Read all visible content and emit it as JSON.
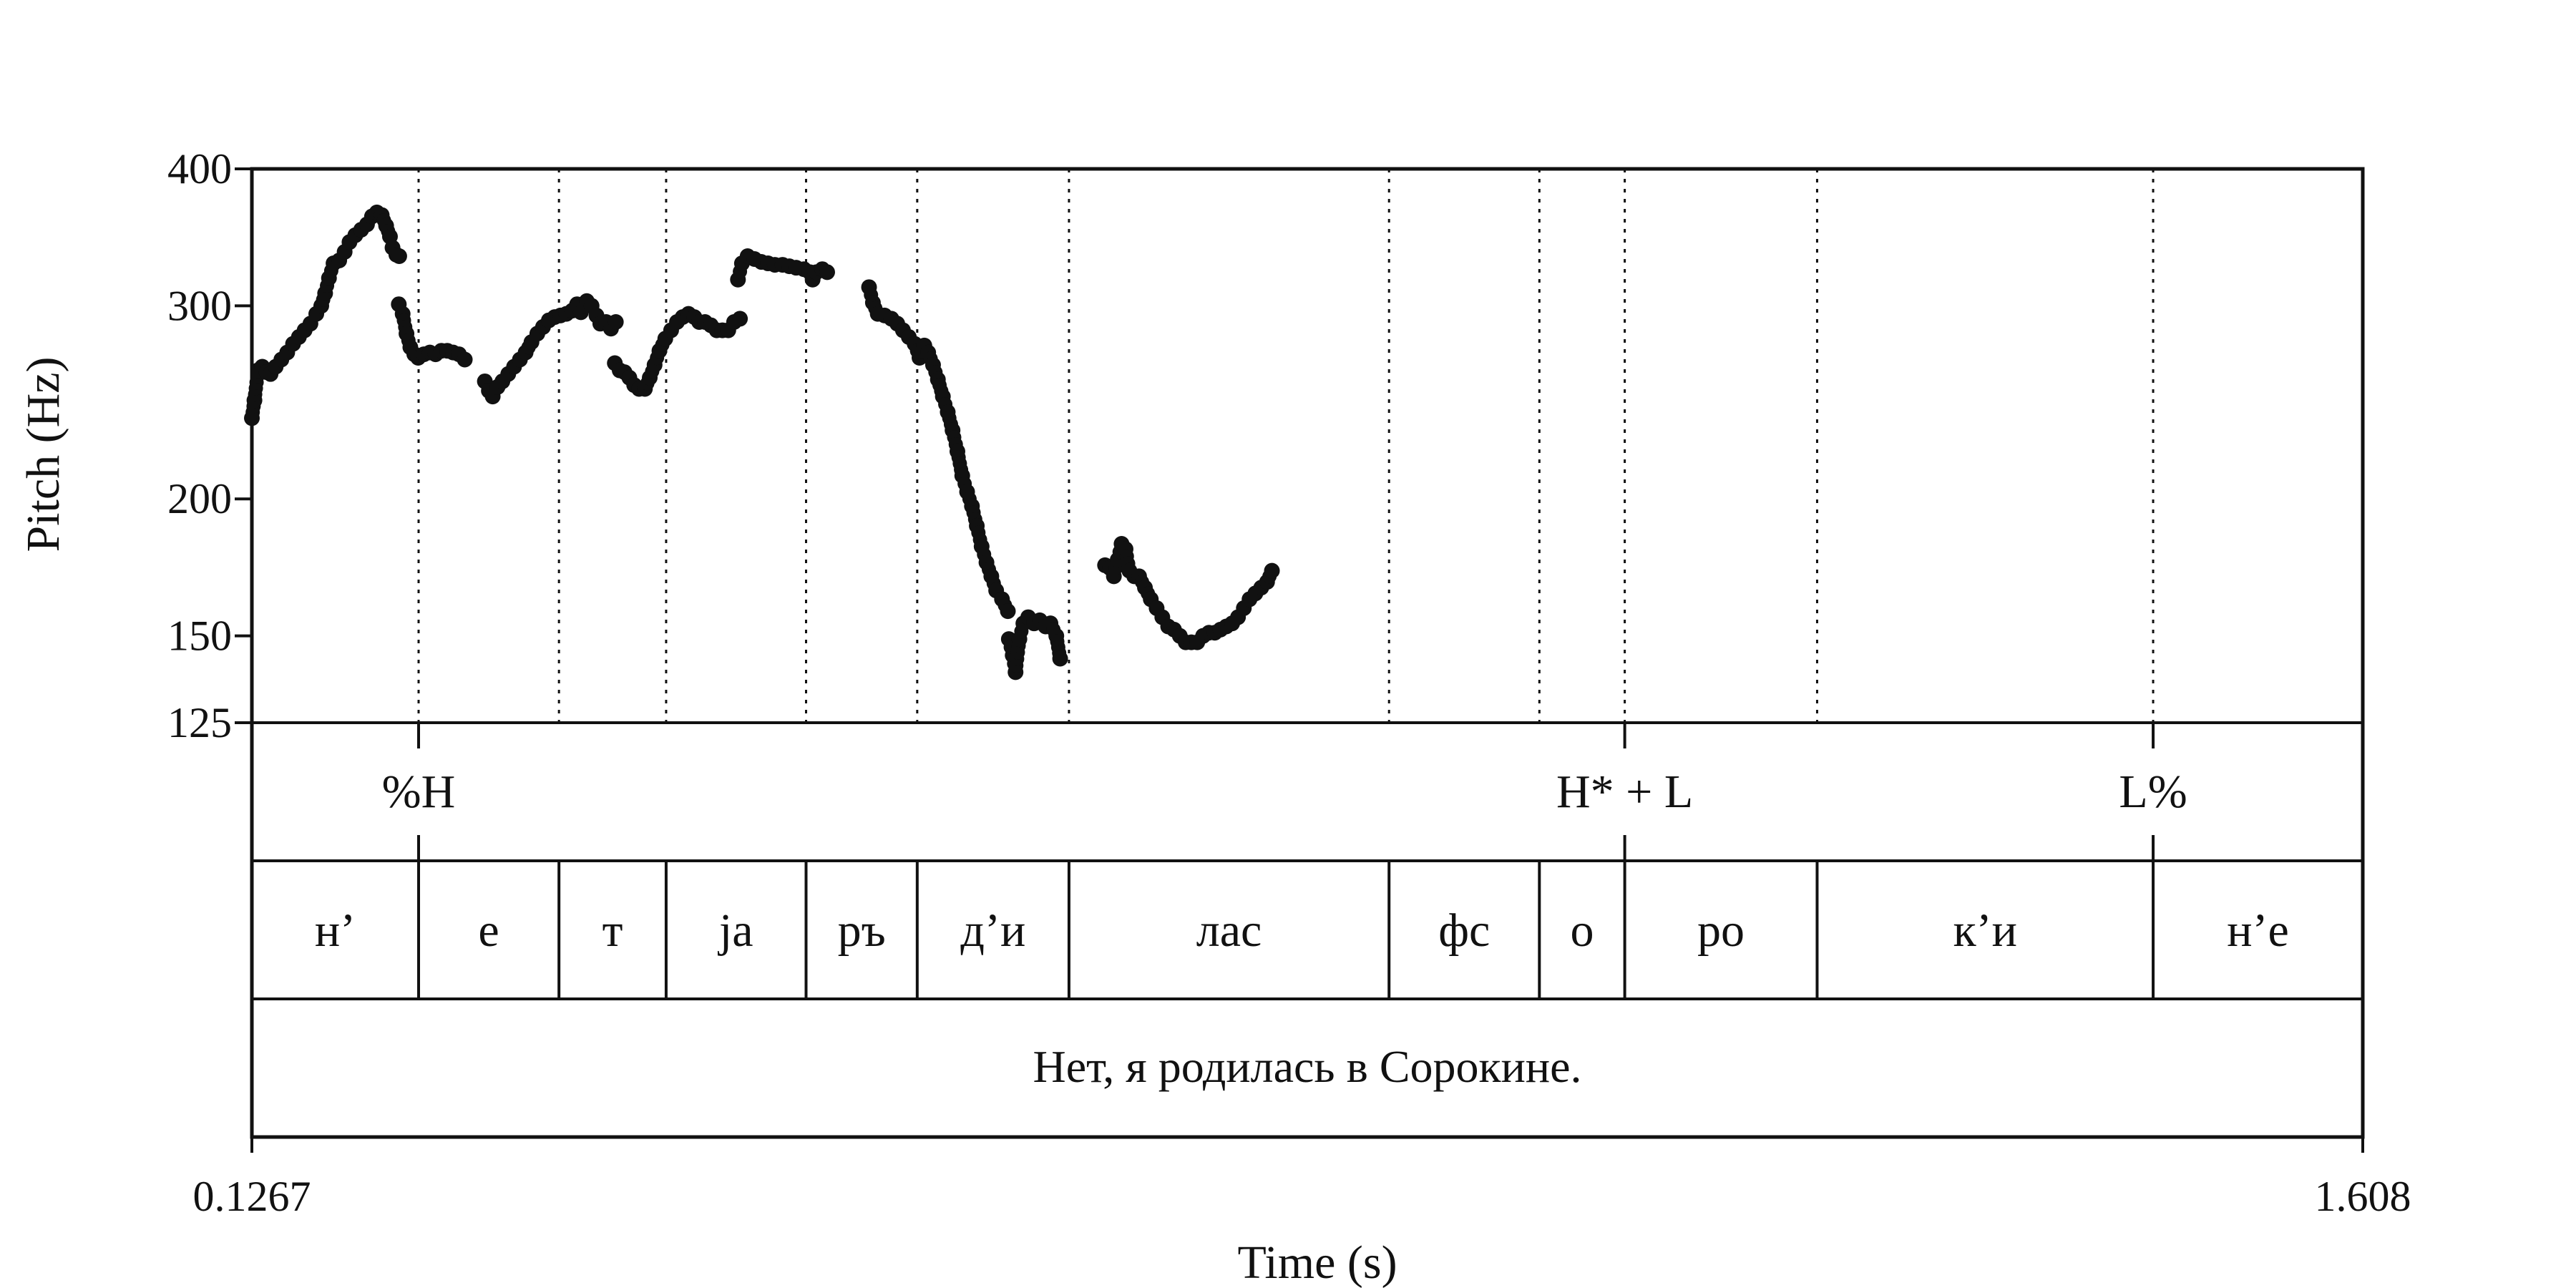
{
  "chart_data": {
    "type": "scatter",
    "title": "",
    "xlabel": "Time (s)",
    "ylabel": "Pitch (Hz)",
    "xlim": [
      0.1267,
      1.608
    ],
    "ylim": [
      125,
      400
    ],
    "y_scale": "log",
    "x_tick_labels": [
      "0.1267",
      "1.608"
    ],
    "y_ticks": [
      125,
      150,
      200,
      300,
      400
    ],
    "y_tick_labels": [
      "125",
      "150",
      "200",
      "300",
      "400"
    ],
    "grid": false,
    "colors": {
      "points": "#111111",
      "frame": "#111111"
    },
    "boundaries": [
      0.2437,
      0.3422,
      0.4174,
      0.5156,
      0.5936,
      0.7001,
      0.9247,
      1.0302,
      1.0901,
      1.2251,
      1.4609
    ],
    "tones": [
      {
        "label": "%H",
        "time": 0.2437
      },
      {
        "label": "H* + L",
        "time": 1.0901
      },
      {
        "label": "L%",
        "time": 1.4609
      }
    ],
    "syllables": [
      {
        "label": "н’",
        "start": 0.1267,
        "end": 0.2437
      },
      {
        "label": "е",
        "start": 0.2437,
        "end": 0.3422
      },
      {
        "label": "т",
        "start": 0.3422,
        "end": 0.4174
      },
      {
        "label": "ja",
        "start": 0.4174,
        "end": 0.5156
      },
      {
        "label": "ръ",
        "start": 0.5156,
        "end": 0.5936
      },
      {
        "label": "д’и",
        "start": 0.5936,
        "end": 0.7001
      },
      {
        "label": "лас",
        "start": 0.7001,
        "end": 0.9247
      },
      {
        "label": "фс",
        "start": 0.9247,
        "end": 1.0302
      },
      {
        "label": "о",
        "start": 1.0302,
        "end": 1.0901
      },
      {
        "label": "ро",
        "start": 1.0901,
        "end": 1.2251
      },
      {
        "label": "к’и",
        "start": 1.2251,
        "end": 1.4609
      },
      {
        "label": "н’е",
        "start": 1.4609,
        "end": 1.608
      }
    ],
    "sentence": "Нет, я родилась в Сорокине.",
    "contours": [
      [
        [
          0.1267,
          237
        ],
        [
          0.1285,
          246
        ],
        [
          0.131,
          262
        ],
        [
          0.134,
          264
        ],
        [
          0.137,
          261
        ],
        [
          0.1398,
          260
        ],
        [
          0.1434,
          264
        ],
        [
          0.1474,
          268
        ],
        [
          0.1515,
          272
        ],
        [
          0.1556,
          277
        ],
        [
          0.1597,
          281
        ],
        [
          0.1637,
          285
        ],
        [
          0.1678,
          289
        ],
        [
          0.1719,
          295
        ],
        [
          0.1754,
          300
        ],
        [
          0.1781,
          308
        ],
        [
          0.1808,
          318
        ],
        [
          0.184,
          328
        ],
        [
          0.188,
          330
        ],
        [
          0.1918,
          336
        ],
        [
          0.1952,
          343
        ],
        [
          0.1993,
          348
        ],
        [
          0.2034,
          352
        ],
        [
          0.2075,
          356
        ],
        [
          0.211,
          362
        ],
        [
          0.2144,
          365
        ],
        [
          0.2178,
          363
        ],
        [
          0.2209,
          355
        ],
        [
          0.2236,
          347
        ],
        [
          0.2254,
          339
        ],
        [
          0.2281,
          334
        ],
        [
          0.2301,
          333
        ]
      ],
      [
        [
          0.2298,
          301
        ],
        [
          0.2325,
          295
        ],
        [
          0.2352,
          283
        ],
        [
          0.2379,
          275
        ],
        [
          0.2407,
          271
        ],
        [
          0.2434,
          269
        ],
        [
          0.2475,
          271
        ],
        [
          0.2516,
          272
        ],
        [
          0.2556,
          271
        ],
        [
          0.2597,
          273
        ],
        [
          0.2638,
          273
        ],
        [
          0.2679,
          272
        ],
        [
          0.272,
          271
        ],
        [
          0.2761,
          268
        ]
      ],
      [
        [
          0.2902,
          256
        ],
        [
          0.293,
          251
        ],
        [
          0.2957,
          248
        ],
        [
          0.2991,
          253
        ],
        [
          0.3025,
          256
        ],
        [
          0.3066,
          260
        ],
        [
          0.3107,
          264
        ],
        [
          0.3148,
          268
        ],
        [
          0.3188,
          272
        ],
        [
          0.3229,
          278
        ],
        [
          0.327,
          283
        ],
        [
          0.331,
          287
        ],
        [
          0.3351,
          291
        ],
        [
          0.3392,
          293
        ],
        [
          0.3433,
          294
        ],
        [
          0.3474,
          295
        ],
        [
          0.3515,
          297
        ],
        [
          0.3549,
          301
        ],
        [
          0.3576,
          296
        ],
        [
          0.3617,
          303
        ],
        [
          0.3651,
          300
        ],
        [
          0.3685,
          294
        ],
        [
          0.3712,
          289
        ],
        [
          0.3753,
          290
        ],
        [
          0.3787,
          286
        ],
        [
          0.3821,
          290
        ]
      ],
      [
        [
          0.3814,
          266
        ],
        [
          0.3848,
          262
        ],
        [
          0.3882,
          261
        ],
        [
          0.3916,
          258
        ],
        [
          0.395,
          254
        ],
        [
          0.3984,
          252
        ],
        [
          0.4025,
          252
        ],
        [
          0.4059,
          258
        ],
        [
          0.4093,
          265
        ],
        [
          0.4127,
          273
        ],
        [
          0.4168,
          280
        ],
        [
          0.4209,
          285
        ],
        [
          0.425,
          290
        ],
        [
          0.429,
          293
        ],
        [
          0.4331,
          295
        ],
        [
          0.4372,
          293
        ],
        [
          0.4406,
          290
        ],
        [
          0.4447,
          290
        ],
        [
          0.4488,
          288
        ],
        [
          0.4529,
          285
        ],
        [
          0.4569,
          285
        ],
        [
          0.461,
          285
        ],
        [
          0.4651,
          290
        ],
        [
          0.4692,
          292
        ]
      ],
      [
        [
          0.4678,
          317
        ],
        [
          0.4706,
          328
        ],
        [
          0.4746,
          333
        ],
        [
          0.4794,
          331
        ],
        [
          0.4842,
          329
        ],
        [
          0.4889,
          328
        ],
        [
          0.4937,
          327
        ],
        [
          0.4991,
          327
        ],
        [
          0.5039,
          326
        ],
        [
          0.5087,
          325
        ],
        [
          0.5141,
          324
        ],
        [
          0.5182,
          322
        ],
        [
          0.5202,
          317
        ],
        [
          0.5229,
          322
        ],
        [
          0.527,
          324
        ],
        [
          0.5304,
          322
        ]
      ],
      [
        [
          0.5598,
          312
        ],
        [
          0.5625,
          302
        ],
        [
          0.5659,
          295
        ],
        [
          0.5707,
          294
        ],
        [
          0.5755,
          292
        ],
        [
          0.5796,
          289
        ],
        [
          0.5836,
          285
        ],
        [
          0.5877,
          281
        ],
        [
          0.5918,
          277
        ],
        [
          0.5952,
          269
        ],
        [
          0.5986,
          276
        ],
        [
          0.6013,
          272
        ],
        [
          0.6047,
          265
        ],
        [
          0.6081,
          257
        ],
        [
          0.6116,
          248
        ],
        [
          0.615,
          240
        ],
        [
          0.6184,
          231
        ],
        [
          0.6218,
          221
        ],
        [
          0.6252,
          210
        ],
        [
          0.6286,
          203
        ],
        [
          0.632,
          197
        ],
        [
          0.6354,
          189
        ],
        [
          0.6388,
          181
        ],
        [
          0.6422,
          175
        ],
        [
          0.6456,
          170
        ],
        [
          0.649,
          165
        ],
        [
          0.6531,
          162
        ],
        [
          0.6572,
          158
        ]
      ],
      [
        [
          0.6579,
          149
        ],
        [
          0.6606,
          144
        ],
        [
          0.6626,
          139
        ],
        [
          0.6653,
          149
        ],
        [
          0.6681,
          154
        ],
        [
          0.6715,
          156
        ],
        [
          0.6756,
          154
        ],
        [
          0.6796,
          155
        ],
        [
          0.6837,
          153
        ],
        [
          0.6871,
          154
        ],
        [
          0.6912,
          150
        ],
        [
          0.6939,
          143
        ]
      ],
      [
        [
          0.7254,
          174
        ],
        [
          0.7288,
          173
        ],
        [
          0.7316,
          170
        ],
        [
          0.7343,
          176
        ],
        [
          0.737,
          182
        ],
        [
          0.7398,
          180
        ],
        [
          0.7425,
          172
        ],
        [
          0.7459,
          170
        ],
        [
          0.7493,
          170
        ],
        [
          0.7534,
          166
        ],
        [
          0.7575,
          162
        ],
        [
          0.7616,
          159
        ],
        [
          0.7656,
          156
        ],
        [
          0.7697,
          153
        ],
        [
          0.7738,
          152
        ],
        [
          0.7779,
          150
        ],
        [
          0.782,
          148
        ],
        [
          0.786,
          148
        ],
        [
          0.7901,
          148
        ],
        [
          0.7942,
          150
        ],
        [
          0.7983,
          151
        ],
        [
          0.8024,
          151
        ],
        [
          0.8064,
          152
        ],
        [
          0.8105,
          153
        ],
        [
          0.8146,
          154
        ],
        [
          0.8187,
          156
        ],
        [
          0.8228,
          159
        ],
        [
          0.8268,
          162
        ],
        [
          0.8309,
          164
        ],
        [
          0.835,
          166
        ],
        [
          0.8391,
          168
        ],
        [
          0.8425,
          172
        ]
      ]
    ]
  }
}
